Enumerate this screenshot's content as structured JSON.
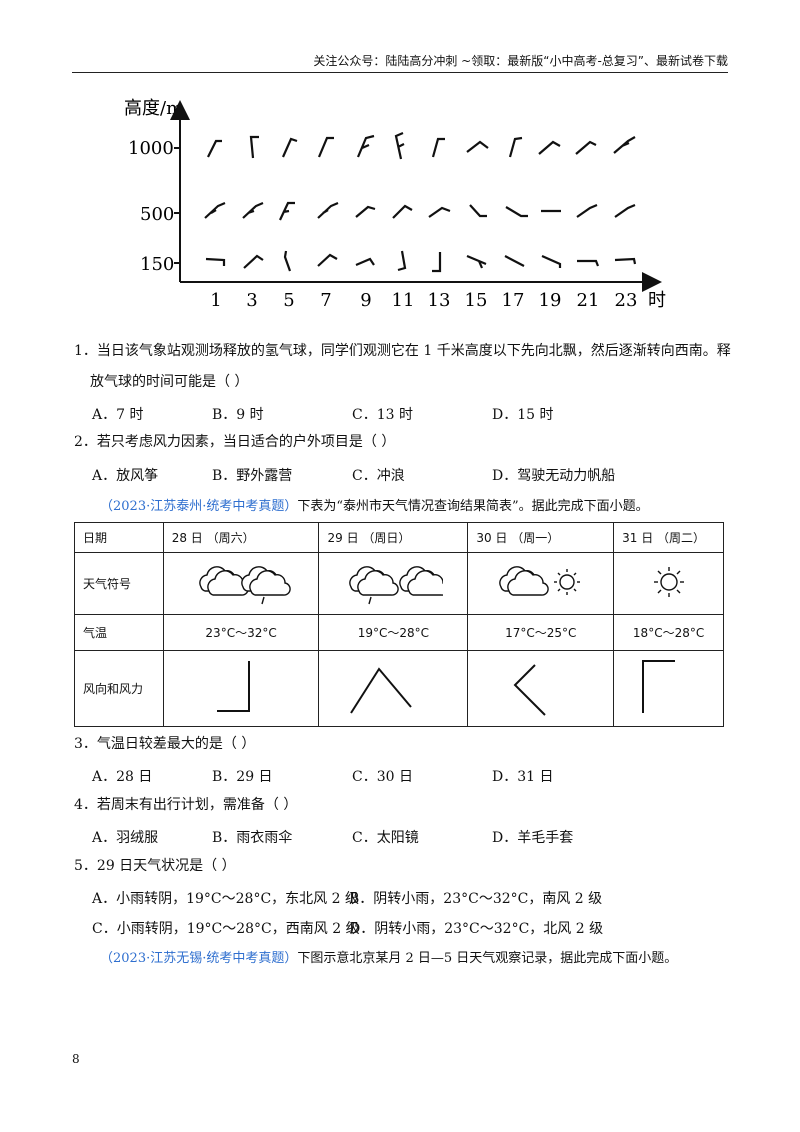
{
  "header": "关注公众号：陆陆高分冲刺  ~领取：最新版“小中高考-总复习”、最新试卷下载",
  "chart_data": {
    "type": "wind-barb-diagram",
    "ylabel": "高度/m",
    "xlabel": "时",
    "y_ticks": [
      "1000",
      "500",
      "150"
    ],
    "x_ticks": [
      "1",
      "3",
      "5",
      "7",
      "9",
      "11",
      "13",
      "15",
      "17",
      "19",
      "21",
      "23"
    ]
  },
  "q1": {
    "stem_line1": "1．当日该气象站观测场释放的氢气球，同学们观测它在 1 千米高度以下先向北飘，然后逐渐转向西南。释",
    "stem_line2": "放气球的时间可能是（    ）",
    "options": [
      "A．7 时",
      "B．9 时",
      "C．13 时",
      "D．15 时"
    ]
  },
  "q2": {
    "stem": "2．若只考虑风力因素，当日适合的户外项目是（    ）",
    "options": [
      "A．放风筝",
      "B．野外露营",
      "C．冲浪",
      "D．驾驶无动力帆船"
    ]
  },
  "intro1": {
    "source": "（2023·江苏泰州·统考中考真题）",
    "text": "下表为“泰州市天气情况查询结果简表”。据此完成下面小题。"
  },
  "table": {
    "headers": [
      "日期",
      "28 日 （周六）",
      "29 日 （周日）",
      "30 日 （周一）",
      "31 日 （周二）"
    ],
    "row_symbol": "天气符号",
    "row_temp": "气温",
    "temps": [
      "23°C～32°C",
      "19°C～28°C",
      "17°C～25°C",
      "18°C～28°C"
    ],
    "row_wind": "风向和风力"
  },
  "q3": {
    "stem": "3．气温日较差最大的是（    ）",
    "options": [
      "A．28 日",
      "B．29 日",
      "C．30 日",
      "D．31 日"
    ]
  },
  "q4": {
    "stem": "4．若周末有出行计划，需准备（    ）",
    "options": [
      "A．羽绒服",
      "B．雨衣雨伞",
      "C．太阳镜",
      "D．羊毛手套"
    ]
  },
  "q5": {
    "stem": "5．29 日天气状况是（    ）",
    "options": [
      "A．小雨转阴，19°C～28°C，东北风 2 级",
      "B．阴转小雨，23°C～32°C，南风 2 级",
      "C．小雨转阴，19°C～28°C，西南风 2 级",
      "D．阴转小雨，23°C～32°C，北风 2 级"
    ]
  },
  "intro2": {
    "source": "（2023·江苏无锡·统考中考真题）",
    "text": "下图示意北京某月 2 日—5 日天气观察记录，据此完成下面小题。"
  },
  "page_number": "8"
}
